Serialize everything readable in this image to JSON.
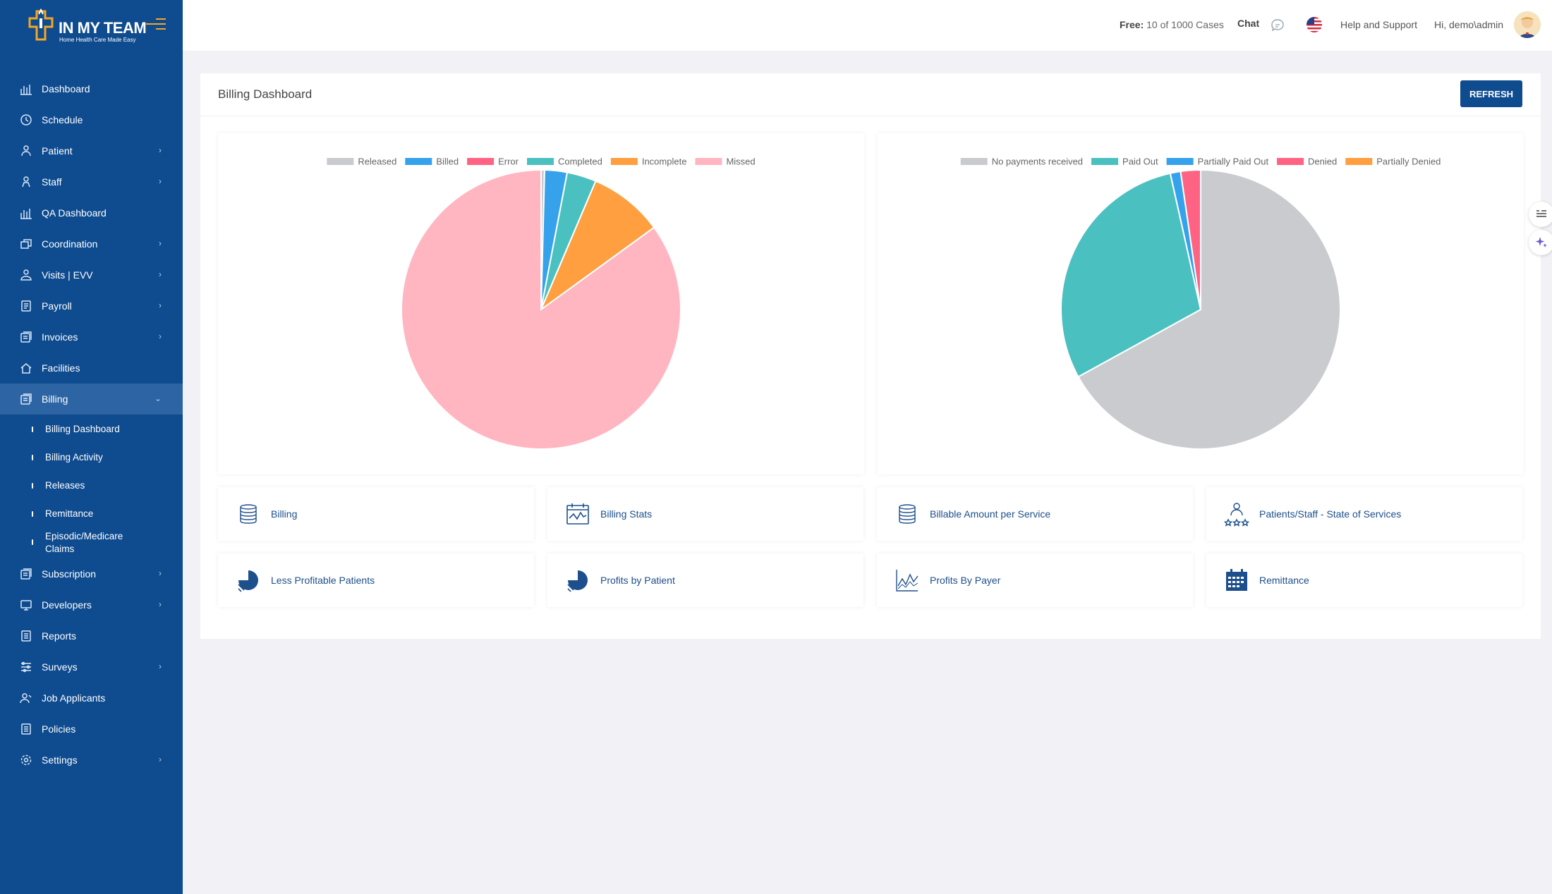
{
  "brand": {
    "name": "IN MY TEAM",
    "tagline": "Home Health Care Made Easy"
  },
  "topbar": {
    "free_label": "Free:",
    "free_value": "10 of 1000 Cases",
    "chat": "Chat",
    "help": "Help and Support",
    "user": "Hi,  demo\\admin"
  },
  "sidebar": {
    "items": [
      {
        "label": "Dashboard",
        "icon": "bar-chart-icon"
      },
      {
        "label": "Schedule",
        "icon": "clock-icon"
      },
      {
        "label": "Patient",
        "icon": "patient-icon",
        "chevron": true
      },
      {
        "label": "Staff",
        "icon": "staff-icon",
        "chevron": true
      },
      {
        "label": "QA Dashboard",
        "icon": "bar-chart-icon"
      },
      {
        "label": "Coordination",
        "icon": "windows-icon",
        "chevron": true
      },
      {
        "label": "Visits | EVV",
        "icon": "visits-icon",
        "chevron": true
      },
      {
        "label": "Payroll",
        "icon": "payroll-icon",
        "chevron": true
      },
      {
        "label": "Invoices",
        "icon": "invoices-icon",
        "chevron": true
      },
      {
        "label": "Facilities",
        "icon": "home-icon"
      },
      {
        "label": "Billing",
        "icon": "billing-icon",
        "chevron": true,
        "expanded": true
      }
    ],
    "billing_sub": [
      "Billing Dashboard",
      "Billing Activity",
      "Releases",
      "Remittance",
      "Episodic/Medicare Claims"
    ],
    "items_after": [
      {
        "label": "Subscription",
        "icon": "subscription-icon",
        "chevron": true
      },
      {
        "label": "Developers",
        "icon": "developers-icon",
        "chevron": true
      },
      {
        "label": "Reports",
        "icon": "reports-icon"
      },
      {
        "label": "Surveys",
        "icon": "surveys-icon",
        "chevron": true
      },
      {
        "label": "Job Applicants",
        "icon": "applicants-icon"
      },
      {
        "label": "Policies",
        "icon": "policies-icon"
      },
      {
        "label": "Settings",
        "icon": "settings-icon",
        "chevron": true
      }
    ]
  },
  "main": {
    "title": "Billing Dashboard",
    "refresh": "REFRESH",
    "tiles": [
      {
        "label": "Billing",
        "icon": "coins-icon"
      },
      {
        "label": "Billing Stats",
        "icon": "calendar-stats-icon"
      },
      {
        "label": "Billable Amount per Service",
        "icon": "coins-icon"
      },
      {
        "label": "Patients/Staff - State of Services",
        "icon": "people-stars-icon"
      },
      {
        "label": "Less Profitable Patients",
        "icon": "pie-hand-icon"
      },
      {
        "label": "Profits by Patient",
        "icon": "pie-hand-icon"
      },
      {
        "label": "Profits By Payer",
        "icon": "line-chart-icon"
      },
      {
        "label": "Remittance",
        "icon": "calendar-grid-icon"
      }
    ]
  },
  "chart_data": [
    {
      "type": "pie",
      "series": [
        {
          "name": "Released",
          "value": 0.4,
          "color": "#c9cbcf"
        },
        {
          "name": "Billed",
          "value": 2.6,
          "color": "#36a2eb"
        },
        {
          "name": "Error",
          "value": 0,
          "color": "#ff6384"
        },
        {
          "name": "Completed",
          "value": 3.4,
          "color": "#4bc0c0"
        },
        {
          "name": "Incomplete",
          "value": 8.6,
          "color": "#ff9f40"
        },
        {
          "name": "Missed",
          "value": 85.0,
          "color": "#ffb6c1"
        }
      ],
      "legend": "top"
    },
    {
      "type": "pie",
      "series": [
        {
          "name": "No payments received",
          "value": 67.0,
          "color": "#c9cbcf"
        },
        {
          "name": "Paid Out",
          "value": 29.5,
          "color": "#4bc0c0"
        },
        {
          "name": "Partially Paid Out",
          "value": 1.2,
          "color": "#36a2eb"
        },
        {
          "name": "Denied",
          "value": 2.3,
          "color": "#ff6384"
        },
        {
          "name": "Partially Denied",
          "value": 0,
          "color": "#ff9f40"
        }
      ],
      "legend": "top"
    }
  ]
}
